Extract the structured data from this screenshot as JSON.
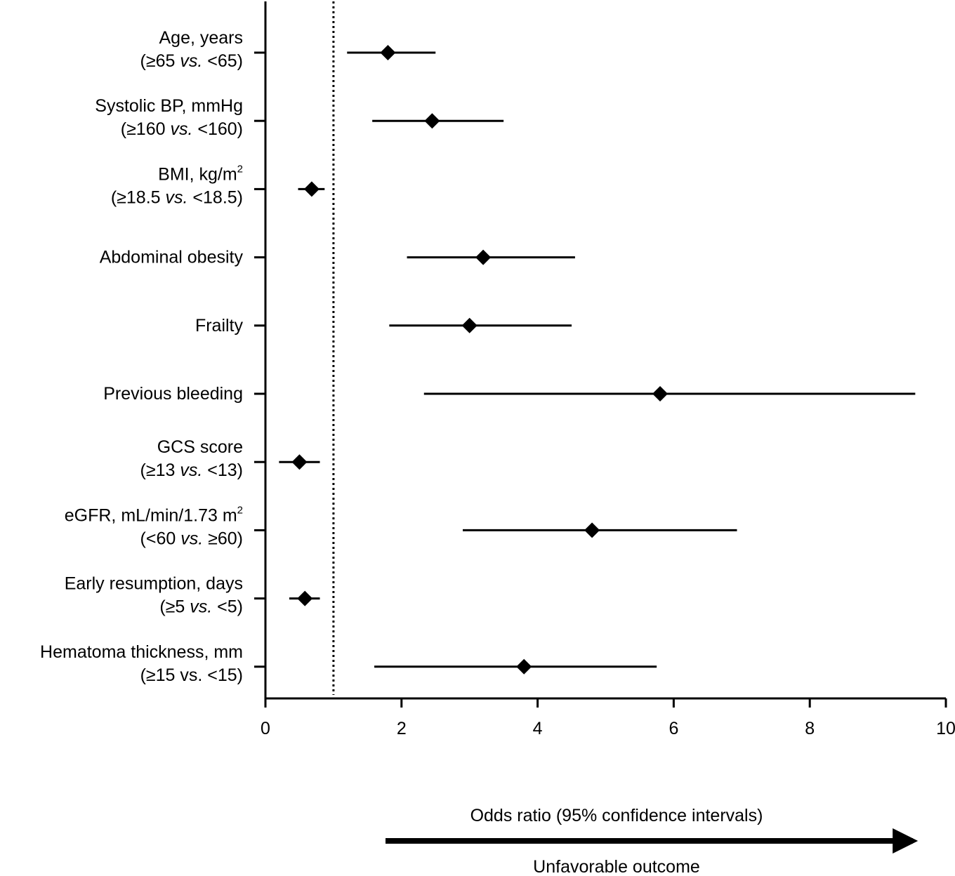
{
  "chart_data": {
    "type": "forest",
    "xlabel": "Odds ratio (95% confidence intervals)",
    "direction_label": "Unfavorable outcome",
    "xlim": [
      0,
      10
    ],
    "xticks": [
      "0",
      "2",
      "4",
      "6",
      "8",
      "10"
    ],
    "reference_line": 1,
    "rows": [
      {
        "line1": "Age, years",
        "line2_pre": "(≥65 ",
        "line2_ital": "vs.",
        "line2_post": " <65)",
        "or": 1.8,
        "lo": 1.2,
        "hi": 2.5
      },
      {
        "line1": "Systolic BP, mmHg",
        "line2_pre": "(≥160 ",
        "line2_ital": "vs.",
        "line2_post": " <160)",
        "or": 2.45,
        "lo": 1.57,
        "hi": 3.5
      },
      {
        "line1": "BMI, kg/m",
        "line1_sup": "2",
        "line2_pre": "(≥18.5 ",
        "line2_ital": "vs.",
        "line2_post": " <18.5)",
        "or": 0.68,
        "lo": 0.48,
        "hi": 0.87
      },
      {
        "line1": "Abdominal obesity",
        "or": 3.2,
        "lo": 2.08,
        "hi": 4.55
      },
      {
        "line1": "Frailty",
        "or": 3.0,
        "lo": 1.82,
        "hi": 4.5
      },
      {
        "line1": "Previous bleeding",
        "or": 5.8,
        "lo": 2.33,
        "hi": 9.55
      },
      {
        "line1": "GCS score",
        "line2_pre": "(≥13 ",
        "line2_ital": "vs.",
        "line2_post": " <13)",
        "or": 0.5,
        "lo": 0.2,
        "hi": 0.8
      },
      {
        "line1": "eGFR, mL/min/1.73 m",
        "line1_sup": "2",
        "line2_pre": "(<60 ",
        "line2_ital": "vs.",
        "line2_post": " ≥60)",
        "or": 4.8,
        "lo": 2.9,
        "hi": 6.93
      },
      {
        "line1": "Early resumption, days",
        "line2_pre": "(≥5 ",
        "line2_ital": "vs.",
        "line2_post": " <5)",
        "or": 0.58,
        "lo": 0.35,
        "hi": 0.8
      },
      {
        "line1": "Hematoma thickness, mm",
        "line2_pre": "(≥15 vs. <15)",
        "or": 3.8,
        "lo": 1.6,
        "hi": 5.75
      }
    ]
  }
}
